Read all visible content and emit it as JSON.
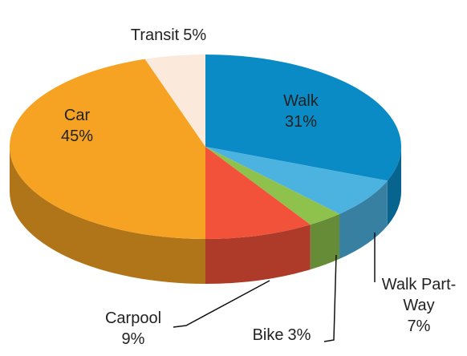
{
  "chart_data": {
    "type": "pie3d",
    "categories": [
      "Walk",
      "Walk Part-Way",
      "Bike",
      "Carpool",
      "Car",
      "Transit"
    ],
    "values": [
      31,
      7,
      3,
      9,
      45,
      5
    ],
    "value_labels": [
      "31%",
      "7%",
      "3%",
      "9%",
      "45%",
      "5%"
    ],
    "colors": [
      "#0a8bc6",
      "#4cb2e0",
      "#8fc24c",
      "#f2513a",
      "#f6a323",
      "#fbeadb"
    ]
  }
}
